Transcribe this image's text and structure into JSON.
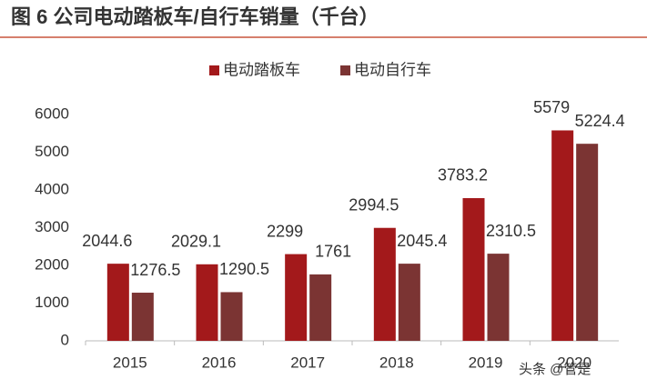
{
  "chart_data": {
    "type": "bar",
    "title": "图 6 公司电动踏板车/自行车销量（千台）",
    "categories": [
      "2015",
      "2016",
      "2017",
      "2018",
      "2019",
      "2020"
    ],
    "series": [
      {
        "name": "电动踏板车",
        "color": "#a3191b",
        "values": [
          2044.6,
          2029.1,
          2299,
          2994.5,
          3783.2,
          5579
        ]
      },
      {
        "name": "电动自行车",
        "color": "#7b3433",
        "values": [
          1276.5,
          1290.5,
          1761,
          2045.4,
          2310.5,
          5224.4
        ]
      }
    ],
    "ylim": [
      0,
      6000
    ],
    "yticks": [
      0,
      1000,
      2000,
      3000,
      4000,
      5000,
      6000
    ],
    "grid": false,
    "legend": "top",
    "watermark": "头条 @管是"
  }
}
